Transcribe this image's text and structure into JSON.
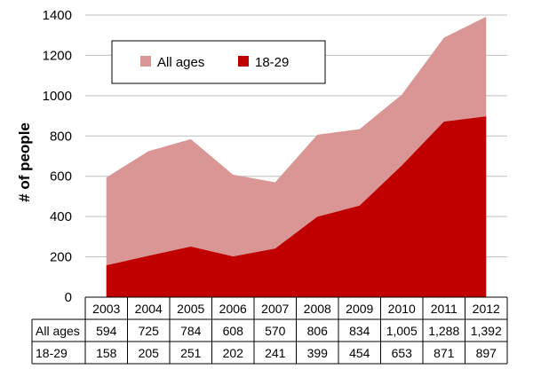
{
  "chart_data": {
    "type": "area",
    "title": "",
    "xlabel": "",
    "ylabel": "# of people",
    "ylim": [
      0,
      1400
    ],
    "yticks": [
      0,
      200,
      400,
      600,
      800,
      1000,
      1200,
      1400
    ],
    "grid": true,
    "legend": "top-left inside plot",
    "categories": [
      "2003",
      "2004",
      "2005",
      "2006",
      "2007",
      "2008",
      "2009",
      "2010",
      "2011",
      "2012"
    ],
    "series": [
      {
        "name": "All ages",
        "color": "#d99694",
        "values": [
          594,
          725,
          784,
          608,
          570,
          806,
          834,
          1005,
          1288,
          1392
        ],
        "labels": [
          "594",
          "725",
          "784",
          "608",
          "570",
          "806",
          "834",
          "1,005",
          "1,288",
          "1,392"
        ]
      },
      {
        "name": "18-29",
        "color": "#c00000",
        "values": [
          158,
          205,
          251,
          202,
          241,
          399,
          454,
          653,
          871,
          897
        ],
        "labels": [
          "158",
          "205",
          "251",
          "202",
          "241",
          "399",
          "454",
          "653",
          "871",
          "897"
        ]
      }
    ]
  }
}
